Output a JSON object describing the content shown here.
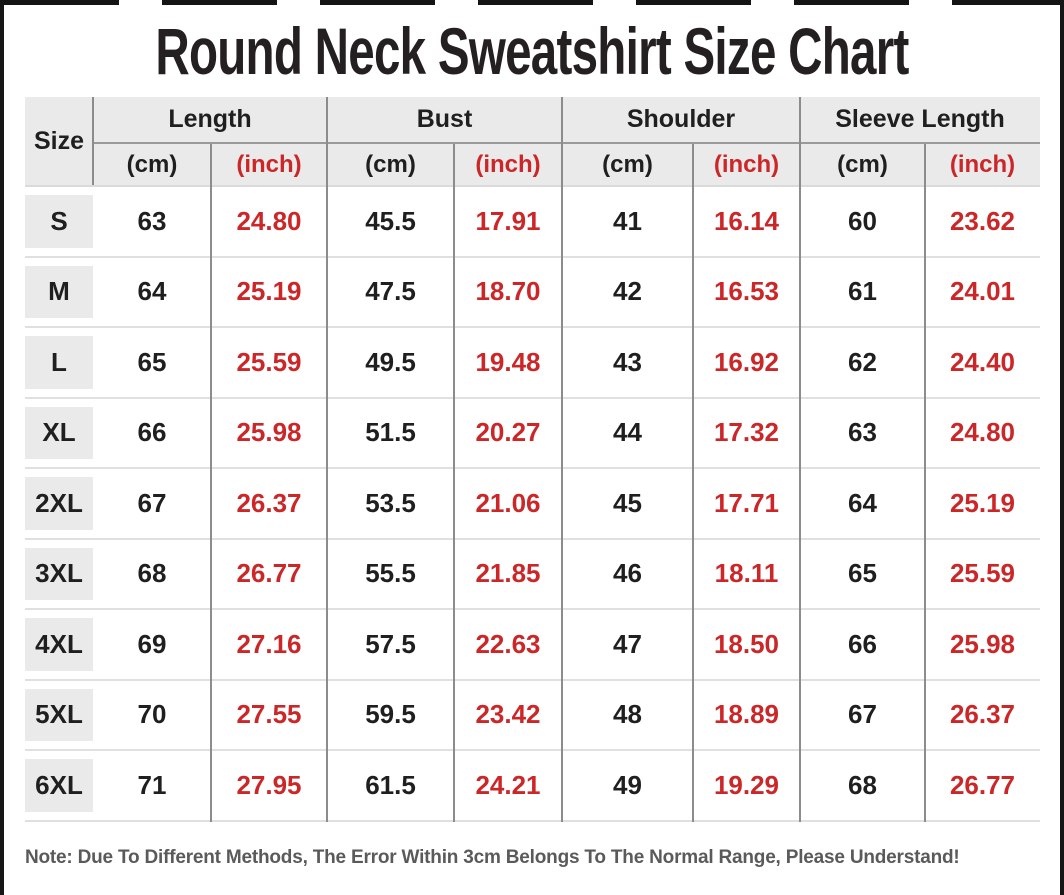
{
  "title": "Round Neck Sweatshirt Size Chart",
  "note": "Note: Due To Different Methods, The Error Within 3cm Belongs To The Normal Range, Please Understand!",
  "colors": {
    "accent_red": "#cc2728",
    "header_bg": "#eaeaea",
    "grid_line_dark": "#8c8c8c",
    "grid_line_light": "#e0e0e0",
    "text_dark": "#1f1f1f",
    "note_gray": "#5a5a5a",
    "frame_black": "#161616"
  },
  "table": {
    "corner_label": "Size",
    "groups": [
      {
        "label": "Length"
      },
      {
        "label": "Bust"
      },
      {
        "label": "Shoulder"
      },
      {
        "label": "Sleeve Length"
      }
    ],
    "unit_cm": "(cm)",
    "unit_inch": "(inch)",
    "rows": [
      {
        "size": "S",
        "values": [
          "63",
          "24.80",
          "45.5",
          "17.91",
          "41",
          "16.14",
          "60",
          "23.62"
        ]
      },
      {
        "size": "M",
        "values": [
          "64",
          "25.19",
          "47.5",
          "18.70",
          "42",
          "16.53",
          "61",
          "24.01"
        ]
      },
      {
        "size": "L",
        "values": [
          "65",
          "25.59",
          "49.5",
          "19.48",
          "43",
          "16.92",
          "62",
          "24.40"
        ]
      },
      {
        "size": "XL",
        "values": [
          "66",
          "25.98",
          "51.5",
          "20.27",
          "44",
          "17.32",
          "63",
          "24.80"
        ]
      },
      {
        "size": "2XL",
        "values": [
          "67",
          "26.37",
          "53.5",
          "21.06",
          "45",
          "17.71",
          "64",
          "25.19"
        ]
      },
      {
        "size": "3XL",
        "values": [
          "68",
          "26.77",
          "55.5",
          "21.85",
          "46",
          "18.11",
          "65",
          "25.59"
        ]
      },
      {
        "size": "4XL",
        "values": [
          "69",
          "27.16",
          "57.5",
          "22.63",
          "47",
          "18.50",
          "66",
          "25.98"
        ]
      },
      {
        "size": "5XL",
        "values": [
          "70",
          "27.55",
          "59.5",
          "23.42",
          "48",
          "18.89",
          "67",
          "26.37"
        ]
      },
      {
        "size": "6XL",
        "values": [
          "71",
          "27.95",
          "61.5",
          "24.21",
          "49",
          "19.29",
          "68",
          "26.77"
        ]
      }
    ]
  },
  "chart_data": {
    "type": "table",
    "title": "Round Neck Sweatshirt Size Chart",
    "columns": [
      "Size",
      "Length (cm)",
      "Length (inch)",
      "Bust (cm)",
      "Bust (inch)",
      "Shoulder (cm)",
      "Shoulder (inch)",
      "Sleeve Length (cm)",
      "Sleeve Length (inch)"
    ],
    "rows": [
      [
        "S",
        63,
        24.8,
        45.5,
        17.91,
        41,
        16.14,
        60,
        23.62
      ],
      [
        "M",
        64,
        25.19,
        47.5,
        18.7,
        42,
        16.53,
        61,
        24.01
      ],
      [
        "L",
        65,
        25.59,
        49.5,
        19.48,
        43,
        16.92,
        62,
        24.4
      ],
      [
        "XL",
        66,
        25.98,
        51.5,
        20.27,
        44,
        17.32,
        63,
        24.8
      ],
      [
        "2XL",
        67,
        26.37,
        53.5,
        21.06,
        45,
        17.71,
        64,
        25.19
      ],
      [
        "3XL",
        68,
        26.77,
        55.5,
        21.85,
        46,
        18.11,
        65,
        25.59
      ],
      [
        "4XL",
        69,
        27.16,
        57.5,
        22.63,
        47,
        18.5,
        66,
        25.98
      ],
      [
        "5XL",
        70,
        27.55,
        59.5,
        23.42,
        48,
        18.89,
        67,
        26.37
      ],
      [
        "6XL",
        71,
        27.95,
        61.5,
        24.21,
        49,
        19.29,
        68,
        26.77
      ]
    ],
    "note": "Note: Due To Different Methods, The Error Within 3cm Belongs To The Normal Range, Please Understand!"
  }
}
